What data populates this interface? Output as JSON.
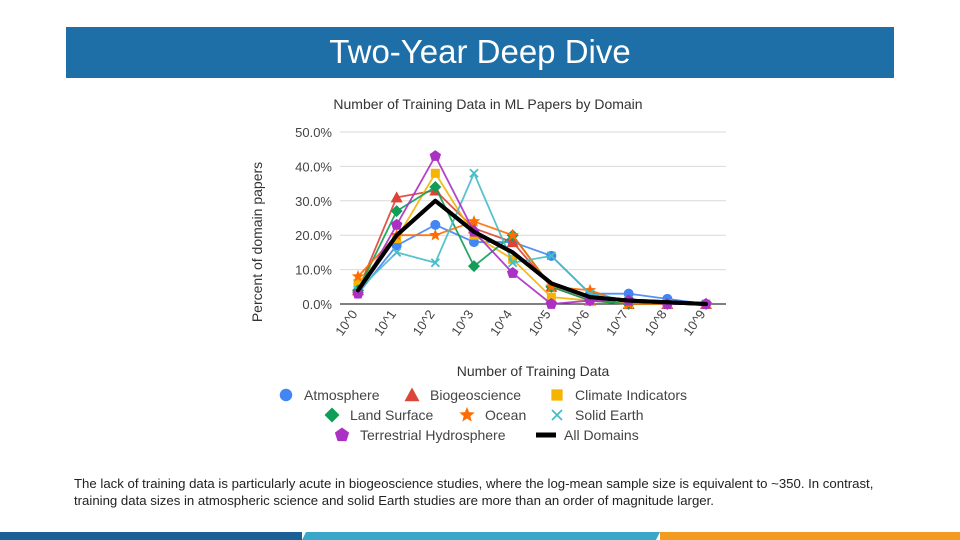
{
  "slide": {
    "title": "Two-Year Deep Dive",
    "caption": "The lack of training data is particularly acute in biogeoscience studies, where the log-mean sample size is equivalent to ~350. In contrast, training data sizes in atmospheric science and solid Earth studies are more than an order of magnitude larger."
  },
  "colors": {
    "title_bar": "#1e6fa8",
    "stripe_dark_blue": "#1a5f95",
    "stripe_light_blue": "#3aa6c9",
    "stripe_orange": "#f39a21"
  },
  "chart_data": {
    "type": "line",
    "title": "Number of Training Data in ML Papers by Domain",
    "xlabel": "Number of Training Data",
    "ylabel": "Percent of domain papers",
    "categories": [
      "10^0",
      "10^1",
      "10^2",
      "10^3",
      "10^4",
      "10^5",
      "10^6",
      "10^7",
      "10^8",
      "10^9"
    ],
    "yticks": [
      "0.0%",
      "10.0%",
      "20.0%",
      "30.0%",
      "40.0%",
      "50.0%"
    ],
    "ylim": [
      0,
      50
    ],
    "grid": true,
    "legend_position": "bottom",
    "series": [
      {
        "name": "Atmosphere",
        "marker": "circle",
        "color": "#4285f4",
        "values": [
          3,
          17,
          23,
          18,
          18,
          14,
          3,
          3,
          1.5,
          0
        ]
      },
      {
        "name": "Biogeoscience",
        "marker": "triangle",
        "color": "#db4437",
        "values": [
          4,
          31,
          33,
          22,
          18,
          5,
          1,
          0,
          0,
          0
        ]
      },
      {
        "name": "Climate Indicators",
        "marker": "square",
        "color": "#f4b400",
        "values": [
          6,
          19,
          38,
          20,
          13,
          2,
          1,
          0,
          0,
          0
        ]
      },
      {
        "name": "Land Surface",
        "marker": "diamond",
        "color": "#0f9d58",
        "values": [
          4,
          27,
          34,
          11,
          20,
          5,
          1,
          0,
          0,
          0
        ]
      },
      {
        "name": "Ocean",
        "marker": "star",
        "color": "#ff6d01",
        "values": [
          8,
          20,
          20,
          24,
          20,
          5,
          4,
          0,
          0,
          0
        ]
      },
      {
        "name": "Solid Earth",
        "marker": "x",
        "color": "#46bdc6",
        "values": [
          4,
          15,
          12,
          38,
          12,
          14,
          3,
          1,
          0,
          0
        ]
      },
      {
        "name": "Terrestrial Hydrosphere",
        "marker": "pentagon",
        "color": "#ab30c4",
        "values": [
          3,
          23,
          43,
          21,
          9,
          0,
          1,
          1,
          0,
          0
        ]
      },
      {
        "name": "All Domains",
        "marker": "none",
        "color": "#000000",
        "values": [
          4,
          20,
          30,
          21,
          15,
          6,
          2,
          1,
          0.5,
          0
        ]
      }
    ]
  }
}
